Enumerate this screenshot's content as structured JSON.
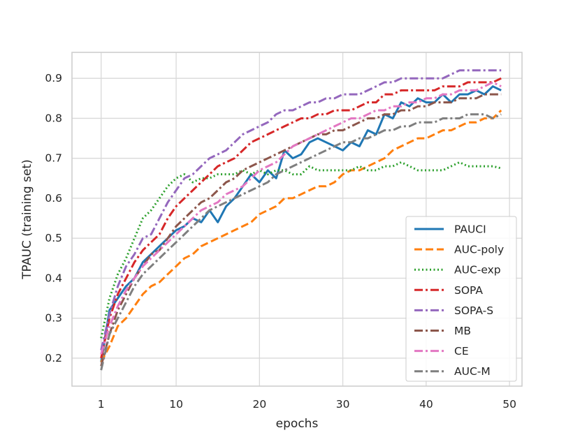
{
  "chart_data": {
    "type": "line",
    "xlabel": "epochs",
    "ylabel": "TPAUC (training set)",
    "xlim": [
      -2.5,
      51.5
    ],
    "ylim": [
      0.13,
      0.965
    ],
    "xticks": [
      1,
      10,
      20,
      30,
      40,
      50
    ],
    "yticks": [
      0.2,
      0.3,
      0.4,
      0.5,
      0.6,
      0.7,
      0.8,
      0.9
    ],
    "grid": true,
    "legend_position": "lower-right",
    "x": [
      1,
      2,
      3,
      4,
      5,
      6,
      7,
      8,
      9,
      10,
      11,
      12,
      13,
      14,
      15,
      16,
      17,
      18,
      19,
      20,
      21,
      22,
      23,
      24,
      25,
      26,
      27,
      28,
      29,
      30,
      31,
      32,
      33,
      34,
      35,
      36,
      37,
      38,
      39,
      40,
      41,
      42,
      43,
      44,
      45,
      46,
      47,
      48,
      49
    ],
    "series": [
      {
        "name": "PAUCI",
        "color": "#1f77b4",
        "dash": "solid",
        "values": [
          0.19,
          0.32,
          0.35,
          0.38,
          0.4,
          0.44,
          0.46,
          0.48,
          0.5,
          0.52,
          0.53,
          0.55,
          0.54,
          0.57,
          0.54,
          0.58,
          0.6,
          0.63,
          0.66,
          0.64,
          0.67,
          0.65,
          0.72,
          0.7,
          0.71,
          0.74,
          0.75,
          0.74,
          0.73,
          0.72,
          0.74,
          0.73,
          0.77,
          0.76,
          0.81,
          0.8,
          0.84,
          0.83,
          0.85,
          0.84,
          0.84,
          0.86,
          0.84,
          0.86,
          0.86,
          0.87,
          0.86,
          0.88,
          0.87
        ]
      },
      {
        "name": "AUC-poly",
        "color": "#ff7f0e",
        "dash": "dashed",
        "values": [
          0.19,
          0.23,
          0.28,
          0.3,
          0.33,
          0.36,
          0.38,
          0.39,
          0.41,
          0.43,
          0.45,
          0.46,
          0.48,
          0.49,
          0.5,
          0.51,
          0.52,
          0.53,
          0.54,
          0.56,
          0.57,
          0.58,
          0.6,
          0.6,
          0.61,
          0.62,
          0.63,
          0.63,
          0.64,
          0.66,
          0.67,
          0.67,
          0.68,
          0.69,
          0.7,
          0.72,
          0.73,
          0.74,
          0.75,
          0.75,
          0.76,
          0.77,
          0.77,
          0.78,
          0.79,
          0.79,
          0.8,
          0.8,
          0.82
        ]
      },
      {
        "name": "AUC-exp",
        "color": "#2ca02c",
        "dash": "dotted",
        "values": [
          0.25,
          0.35,
          0.41,
          0.45,
          0.5,
          0.55,
          0.57,
          0.6,
          0.63,
          0.65,
          0.66,
          0.64,
          0.65,
          0.65,
          0.66,
          0.66,
          0.66,
          0.67,
          0.66,
          0.67,
          0.66,
          0.67,
          0.67,
          0.66,
          0.66,
          0.68,
          0.67,
          0.67,
          0.67,
          0.67,
          0.67,
          0.68,
          0.67,
          0.67,
          0.68,
          0.68,
          0.69,
          0.68,
          0.67,
          0.67,
          0.67,
          0.67,
          0.68,
          0.69,
          0.68,
          0.68,
          0.68,
          0.68,
          0.675
        ]
      },
      {
        "name": "SOPA",
        "color": "#d62728",
        "dash": "dashdotted",
        "values": [
          0.2,
          0.3,
          0.36,
          0.4,
          0.44,
          0.47,
          0.49,
          0.51,
          0.55,
          0.58,
          0.6,
          0.62,
          0.64,
          0.66,
          0.68,
          0.69,
          0.7,
          0.72,
          0.74,
          0.75,
          0.76,
          0.77,
          0.78,
          0.79,
          0.8,
          0.8,
          0.81,
          0.81,
          0.82,
          0.82,
          0.82,
          0.83,
          0.84,
          0.84,
          0.86,
          0.86,
          0.87,
          0.87,
          0.87,
          0.87,
          0.87,
          0.88,
          0.88,
          0.88,
          0.89,
          0.89,
          0.89,
          0.89,
          0.9
        ]
      },
      {
        "name": "SOPA-S",
        "color": "#9467bd",
        "dash": "dashdotted",
        "values": [
          0.22,
          0.31,
          0.38,
          0.43,
          0.46,
          0.5,
          0.51,
          0.55,
          0.59,
          0.62,
          0.65,
          0.66,
          0.68,
          0.7,
          0.71,
          0.72,
          0.74,
          0.76,
          0.77,
          0.78,
          0.79,
          0.81,
          0.82,
          0.82,
          0.83,
          0.84,
          0.84,
          0.85,
          0.85,
          0.86,
          0.86,
          0.86,
          0.87,
          0.88,
          0.89,
          0.89,
          0.9,
          0.9,
          0.9,
          0.9,
          0.9,
          0.9,
          0.91,
          0.92,
          0.92,
          0.92,
          0.92,
          0.92,
          0.92
        ]
      },
      {
        "name": "MB",
        "color": "#8c564b",
        "dash": "dashdotted",
        "values": [
          0.18,
          0.26,
          0.32,
          0.36,
          0.4,
          0.43,
          0.46,
          0.47,
          0.5,
          0.53,
          0.55,
          0.57,
          0.59,
          0.6,
          0.62,
          0.64,
          0.65,
          0.67,
          0.68,
          0.69,
          0.7,
          0.71,
          0.72,
          0.73,
          0.74,
          0.75,
          0.76,
          0.76,
          0.77,
          0.77,
          0.78,
          0.79,
          0.8,
          0.8,
          0.81,
          0.81,
          0.82,
          0.82,
          0.83,
          0.83,
          0.84,
          0.84,
          0.84,
          0.85,
          0.85,
          0.85,
          0.86,
          0.86,
          0.86
        ]
      },
      {
        "name": "CE",
        "color": "#e377c2",
        "dash": "dashdotted",
        "values": [
          0.21,
          0.28,
          0.33,
          0.37,
          0.4,
          0.43,
          0.45,
          0.47,
          0.49,
          0.51,
          0.53,
          0.55,
          0.57,
          0.58,
          0.59,
          0.61,
          0.62,
          0.63,
          0.65,
          0.67,
          0.68,
          0.69,
          0.71,
          0.73,
          0.74,
          0.75,
          0.76,
          0.77,
          0.78,
          0.79,
          0.8,
          0.8,
          0.81,
          0.82,
          0.82,
          0.83,
          0.83,
          0.84,
          0.84,
          0.85,
          0.85,
          0.86,
          0.86,
          0.87,
          0.87,
          0.87,
          0.88,
          0.89,
          0.88
        ]
      },
      {
        "name": "AUC-M",
        "color": "#7f7f7f",
        "dash": "dashdotted",
        "values": [
          0.17,
          0.26,
          0.3,
          0.34,
          0.38,
          0.41,
          0.43,
          0.45,
          0.47,
          0.49,
          0.51,
          0.53,
          0.55,
          0.57,
          0.58,
          0.59,
          0.6,
          0.61,
          0.62,
          0.63,
          0.64,
          0.66,
          0.67,
          0.68,
          0.69,
          0.7,
          0.71,
          0.72,
          0.73,
          0.74,
          0.74,
          0.75,
          0.75,
          0.76,
          0.77,
          0.77,
          0.78,
          0.78,
          0.79,
          0.79,
          0.79,
          0.8,
          0.8,
          0.8,
          0.81,
          0.81,
          0.81,
          0.8,
          0.81
        ]
      }
    ]
  }
}
